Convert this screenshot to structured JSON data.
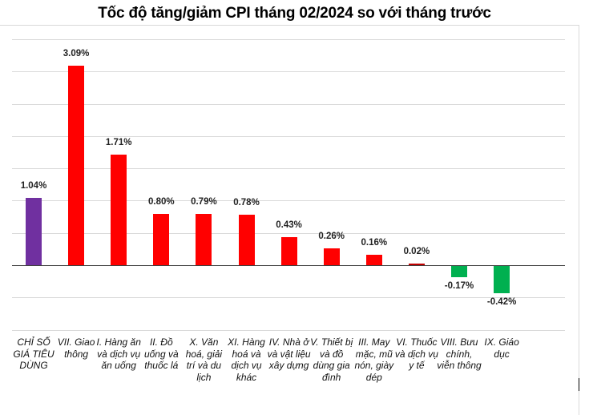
{
  "title": "Tốc độ tăng/giảm CPI tháng 02/2024 so với tháng trước",
  "colors": {
    "overall": "#7030a0",
    "increase": "#ff0000",
    "small_increase": "#c00000",
    "decrease": "#00b050",
    "grid": "#d9d9d9",
    "axis": "#404040"
  },
  "chart_data": {
    "type": "bar",
    "title": "Tốc độ tăng/giảm CPI tháng 02/2024 so với tháng trước",
    "xlabel": "",
    "ylabel": "",
    "ylim": [
      -1.0,
      3.5
    ],
    "grid": true,
    "legend": "none",
    "categories": [
      "CHỈ SỐ GIÁ TIÊU DÙNG",
      "VII. Giao thông",
      "I. Hàng ăn và dịch vụ ăn uống",
      "II. Đồ uống và thuốc lá",
      "X. Văn hoá, giải trí và du lịch",
      "XI. Hàng hoá và dịch vụ khác",
      "IV. Nhà ở và vật liệu xây dựng",
      "V. Thiết bị và đồ dùng gia đình",
      "III. May mặc, mũ nón, giày dép",
      "VI. Thuốc và dịch vụ y tế",
      "VIII. Bưu chính, viễn thông",
      "IX. Giáo dục"
    ],
    "values": [
      1.04,
      3.09,
      1.71,
      0.8,
      0.79,
      0.78,
      0.43,
      0.26,
      0.16,
      0.02,
      -0.17,
      -0.42
    ],
    "labels": [
      "1.04%",
      "3.09%",
      "1.71%",
      "0.80%",
      "0.79%",
      "0.78%",
      "0.43%",
      "0.26%",
      "0.16%",
      "0.02%",
      "-0.17%",
      "-0.42%"
    ],
    "bar_colors": [
      "#7030a0",
      "#ff0000",
      "#ff0000",
      "#ff0000",
      "#ff0000",
      "#ff0000",
      "#ff0000",
      "#ff0000",
      "#ff0000",
      "#c00000",
      "#00b050",
      "#00b050"
    ]
  }
}
